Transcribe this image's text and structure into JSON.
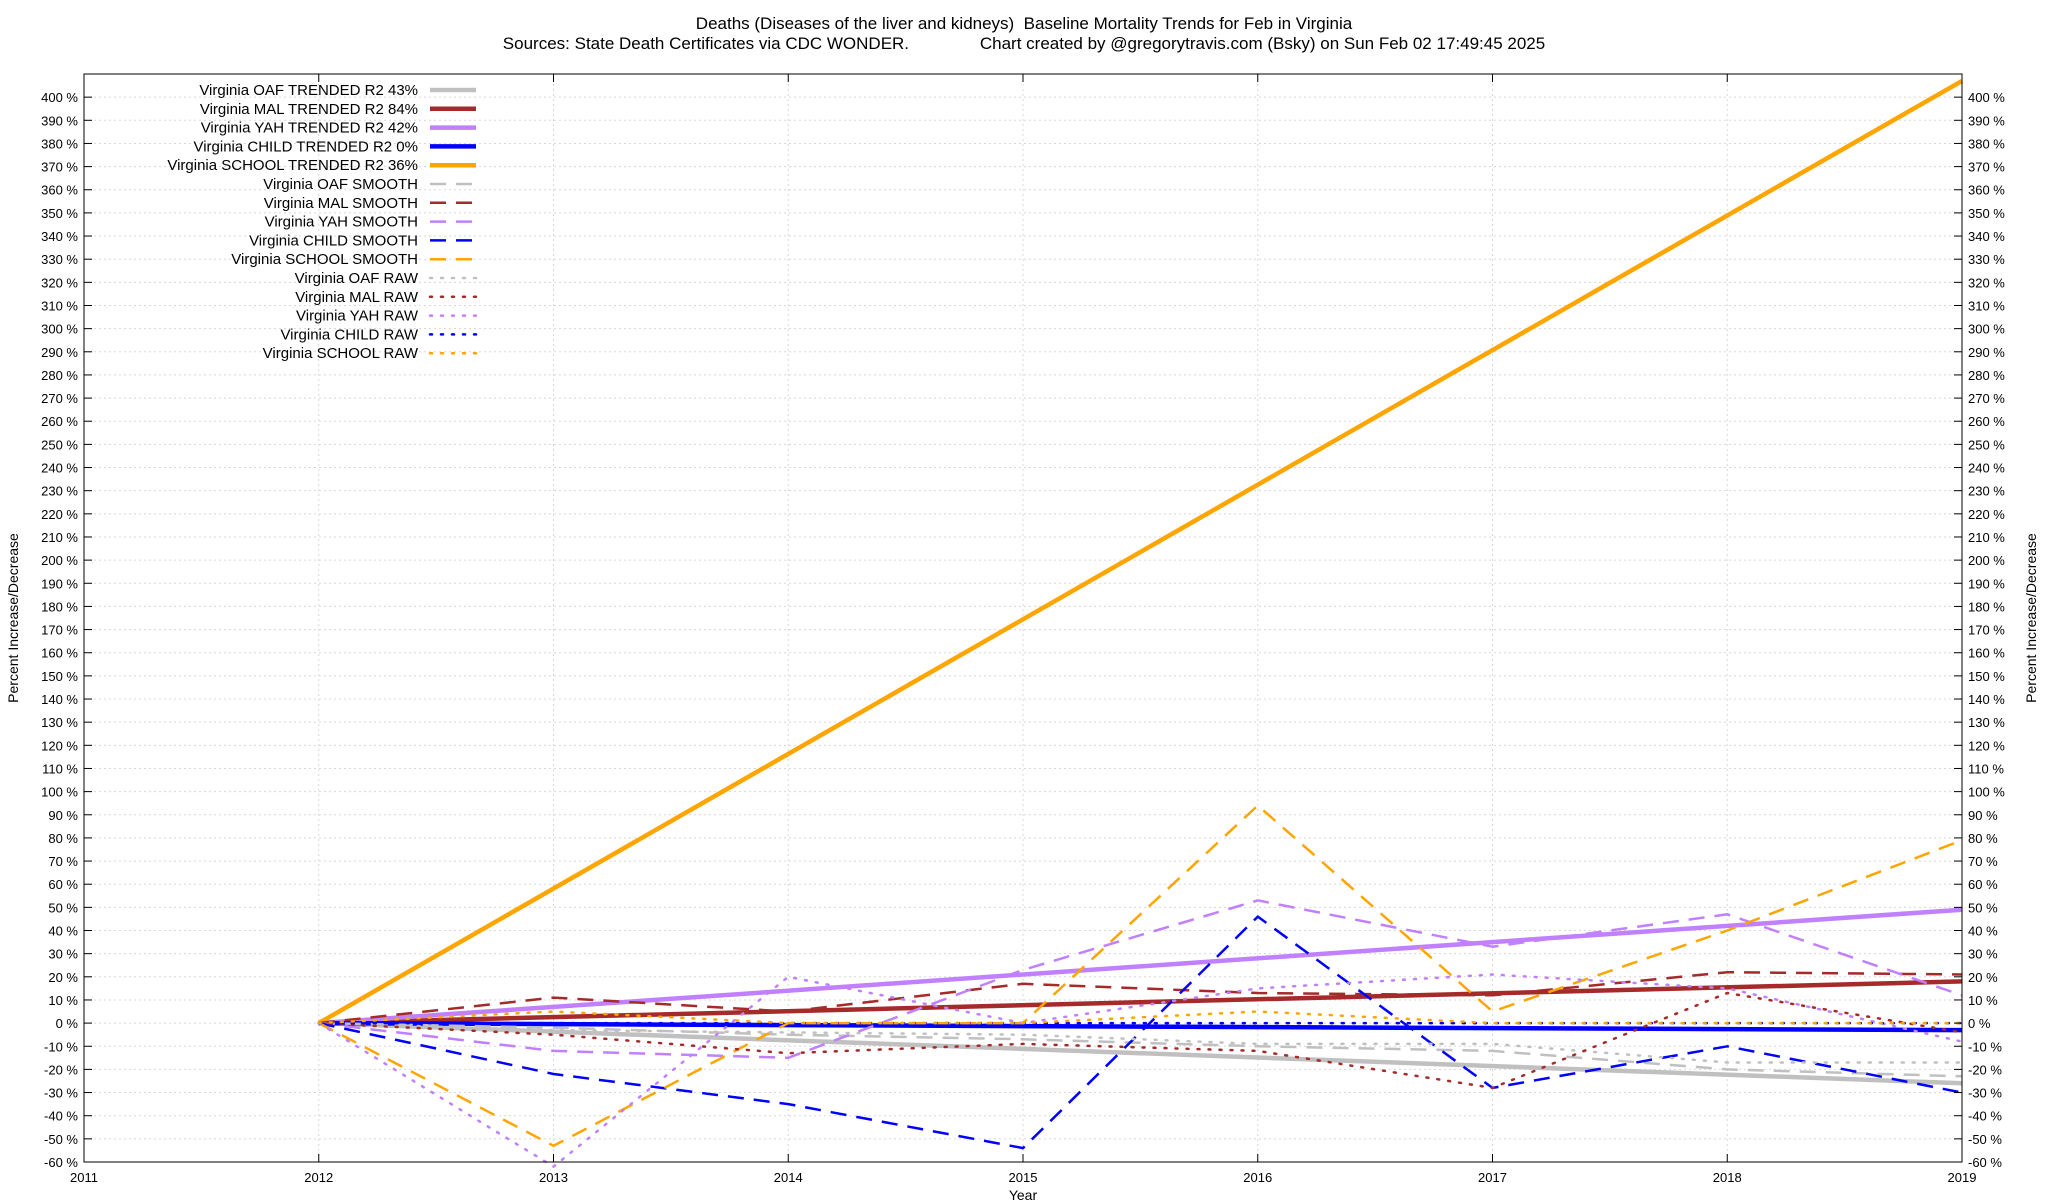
{
  "chart_data": {
    "type": "line",
    "title": "Deaths (Diseases of the liver and kidneys)  Baseline Mortality Trends for Feb in Virginia",
    "subtitle": "Sources: State Death Certificates via CDC WONDER.               Chart created by @gregorytravis.com (Bsky) on Sun Feb 02 17:49:45 2025",
    "xlabel": "Year",
    "ylabel": "Percent Increase/Decrease",
    "ylabel_right": "Percent Increase/Decrease",
    "xlim": [
      2011,
      2019
    ],
    "ylim": [
      -60,
      410
    ],
    "x_ticks": [
      "2011",
      "2012",
      "2013",
      "2014",
      "2015",
      "2016",
      "2017",
      "2018",
      "2019"
    ],
    "y_ticks": [
      -60,
      -50,
      -40,
      -30,
      -20,
      -10,
      0,
      10,
      20,
      30,
      40,
      50,
      60,
      70,
      80,
      90,
      100,
      110,
      120,
      130,
      140,
      150,
      160,
      170,
      180,
      190,
      200,
      210,
      220,
      230,
      240,
      250,
      260,
      270,
      280,
      290,
      300,
      310,
      320,
      330,
      340,
      350,
      360,
      370,
      380,
      390,
      400
    ],
    "y_tick_suffix": " %",
    "grid": true,
    "legend_position": "top-left",
    "series": [
      {
        "name": "Virginia OAF TRENDED R2  43%",
        "style": "solid",
        "color": "#c0c0c0",
        "x": [
          2012,
          2019
        ],
        "y": [
          0,
          -26
        ]
      },
      {
        "name": "Virginia MAL TRENDED R2  84%",
        "style": "solid",
        "color": "#a52a2a",
        "x": [
          2012,
          2019
        ],
        "y": [
          0,
          18
        ]
      },
      {
        "name": "Virginia YAH TRENDED R2  42%",
        "style": "solid",
        "color": "#c080ff",
        "x": [
          2012,
          2019
        ],
        "y": [
          0,
          49
        ]
      },
      {
        "name": "Virginia CHILD TRENDED R2   0%",
        "style": "solid",
        "color": "#0000ff",
        "x": [
          2012,
          2019
        ],
        "y": [
          0,
          -3
        ]
      },
      {
        "name": "Virginia SCHOOL TRENDED R2  36%",
        "style": "solid",
        "color": "#ffa500",
        "x": [
          2012,
          2019
        ],
        "y": [
          0,
          407
        ]
      },
      {
        "name": "Virginia OAF SMOOTH",
        "style": "dashed",
        "color": "#c0c0c0",
        "x": [
          2012,
          2013,
          2014,
          2015,
          2016,
          2017,
          2018,
          2019
        ],
        "y": [
          0,
          -2,
          -5,
          -7,
          -10,
          -12,
          -20,
          -23
        ]
      },
      {
        "name": "Virginia MAL SMOOTH",
        "style": "dashed",
        "color": "#a52a2a",
        "x": [
          2012,
          2013,
          2014,
          2015,
          2016,
          2017,
          2018,
          2019
        ],
        "y": [
          0,
          11,
          5,
          17,
          13,
          12,
          22,
          21
        ]
      },
      {
        "name": "Virginia YAH SMOOTH",
        "style": "dashed",
        "color": "#c080ff",
        "x": [
          2012,
          2013,
          2014,
          2015,
          2016,
          2017,
          2018,
          2019
        ],
        "y": [
          0,
          -12,
          -15,
          23,
          53,
          33,
          47,
          12
        ]
      },
      {
        "name": "Virginia CHILD SMOOTH",
        "style": "dashed",
        "color": "#0000ff",
        "x": [
          2012,
          2013,
          2014,
          2015,
          2016,
          2017,
          2018,
          2019
        ],
        "y": [
          0,
          -22,
          -35,
          -54,
          46,
          -28,
          -10,
          -30
        ]
      },
      {
        "name": "Virginia SCHOOL SMOOTH",
        "style": "dashed",
        "color": "#ffa500",
        "x": [
          2012,
          2013,
          2014,
          2015,
          2016,
          2017,
          2018,
          2019
        ],
        "y": [
          0,
          -53,
          0,
          0,
          94,
          5,
          40,
          79
        ]
      },
      {
        "name": "Virginia OAF RAW",
        "style": "dotted",
        "color": "#c0c0c0",
        "x": [
          2012,
          2013,
          2014,
          2015,
          2016,
          2017,
          2018,
          2019
        ],
        "y": [
          0,
          -3,
          -4,
          -5,
          -9,
          -9,
          -17,
          -17
        ]
      },
      {
        "name": "Virginia MAL RAW",
        "style": "dotted",
        "color": "#a52a2a",
        "x": [
          2012,
          2013,
          2014,
          2015,
          2016,
          2017,
          2018,
          2019
        ],
        "y": [
          0,
          -5,
          -13,
          -9,
          -12,
          -28,
          13,
          -4
        ]
      },
      {
        "name": "Virginia YAH RAW",
        "style": "dotted",
        "color": "#c080ff",
        "x": [
          2012,
          2013,
          2014,
          2015,
          2016,
          2017,
          2018,
          2019
        ],
        "y": [
          0,
          -62,
          20,
          0,
          15,
          21,
          15,
          -8
        ]
      },
      {
        "name": "Virginia CHILD RAW",
        "style": "dotted",
        "color": "#0000ff",
        "x": [
          2012,
          2013,
          2014,
          2015,
          2016,
          2017,
          2018,
          2019
        ],
        "y": [
          0,
          0,
          0,
          0,
          0,
          0,
          0,
          0
        ]
      },
      {
        "name": "Virginia SCHOOL RAW",
        "style": "dotted",
        "color": "#ffa500",
        "x": [
          2012,
          2013,
          2014,
          2015,
          2016,
          2017,
          2018,
          2019
        ],
        "y": [
          0,
          5,
          0,
          0,
          5,
          0,
          0,
          0
        ]
      }
    ]
  }
}
